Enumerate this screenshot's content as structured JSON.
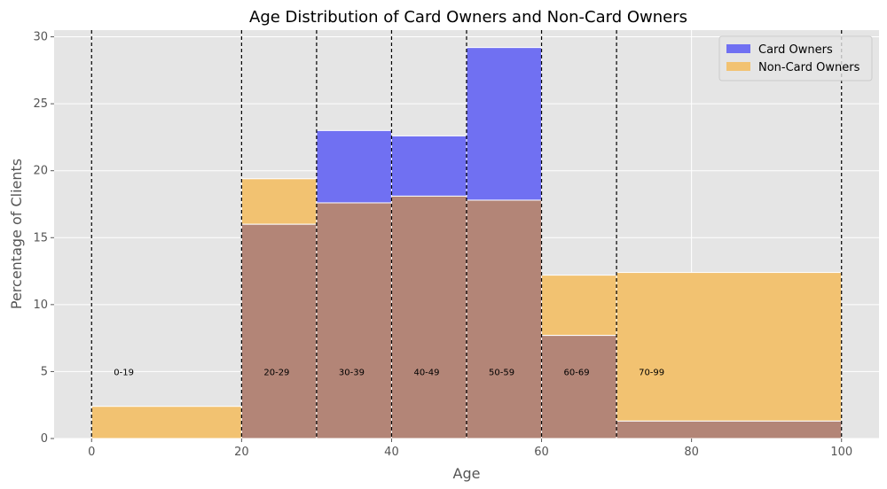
{
  "chart_data": {
    "type": "bar",
    "title": "Age Distribution of Card Owners and Non-Card Owners",
    "xlabel": "Age",
    "ylabel": "Percentage of Clients",
    "xlim": [
      -5,
      105
    ],
    "ylim": [
      0,
      30.5
    ],
    "xticks": [
      0,
      20,
      40,
      60,
      80,
      100
    ],
    "yticks": [
      0,
      5,
      10,
      15,
      20,
      25,
      30
    ],
    "grid": true,
    "legend_position": "top-right",
    "bins": [
      {
        "start": 0,
        "end": 20,
        "label": "0-19"
      },
      {
        "start": 20,
        "end": 30,
        "label": "20-29"
      },
      {
        "start": 30,
        "end": 40,
        "label": "30-39"
      },
      {
        "start": 40,
        "end": 50,
        "label": "40-49"
      },
      {
        "start": 50,
        "end": 60,
        "label": "50-59"
      },
      {
        "start": 60,
        "end": 70,
        "label": "60-69"
      },
      {
        "start": 70,
        "end": 100,
        "label": "70-99"
      }
    ],
    "bin_label_y": 5,
    "bin_edges": [
      0,
      20,
      30,
      40,
      50,
      60,
      70,
      100
    ],
    "series": [
      {
        "name": "Card Owners",
        "color": "#7070f2",
        "values": [
          0,
          16.0,
          23.0,
          22.6,
          29.2,
          7.7,
          1.3
        ]
      },
      {
        "name": "Non-Card Owners",
        "color": "#f2c271",
        "values": [
          2.4,
          19.4,
          17.6,
          18.1,
          17.8,
          12.2,
          12.4
        ]
      }
    ],
    "overlap_color": "#b38577"
  }
}
